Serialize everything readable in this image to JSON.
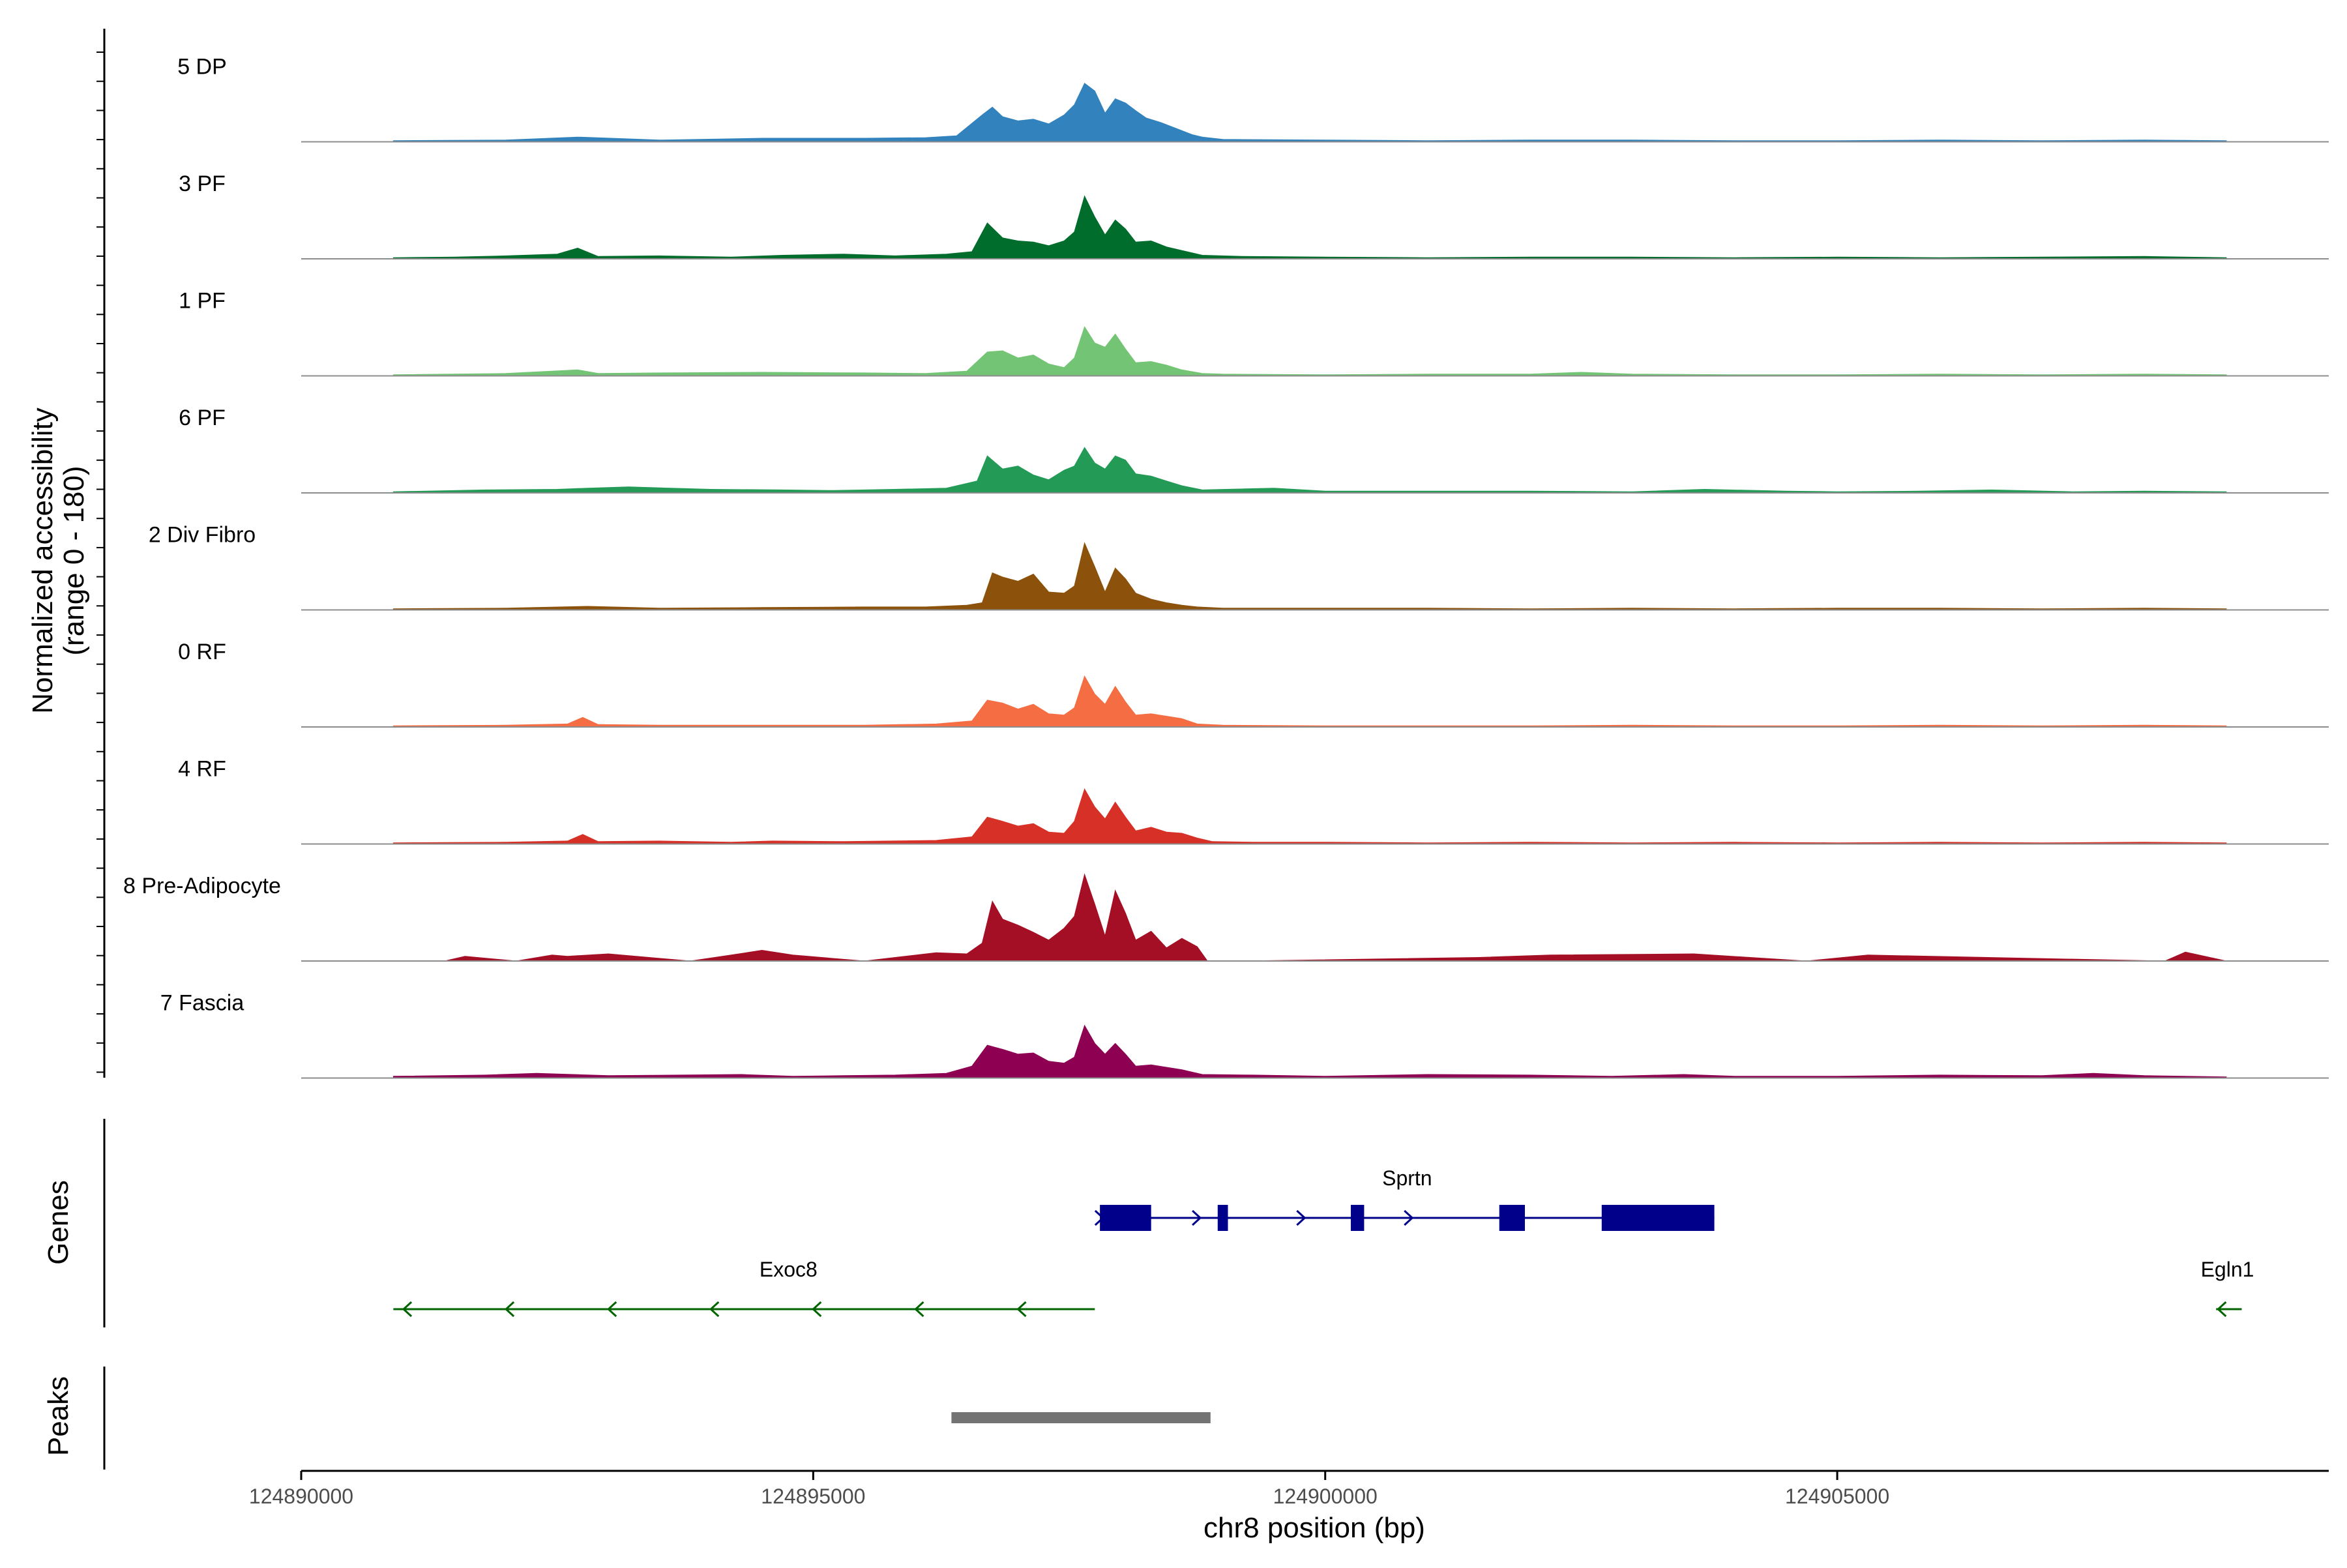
{
  "chart_data": {
    "type": "area",
    "title": "",
    "ylabel_line1": "Normalized accessibility",
    "ylabel_line2": "(range 0 - 180)",
    "y_range": [
      0,
      180
    ],
    "xlabel": "chr8 position (bp)",
    "xlim": [
      124890000,
      124909800
    ],
    "x_ticks": [
      124890000,
      124895000,
      124900000,
      124905000
    ],
    "x_tick_labels": [
      "124890000",
      "124895000",
      "124900000",
      "124905000"
    ],
    "tracks": [
      {
        "name": "5 DP",
        "color": "#3182bd",
        "x": [
          124890900,
          124892000,
          124892700,
          124893500,
          124894500,
          124895500,
          124896100,
          124896400,
          124896650,
          124896750,
          124896850,
          124897000,
          124897150,
          124897300,
          124897450,
          124897550,
          124897650,
          124897750,
          124897850,
          124897950,
          124898050,
          124898150,
          124898250,
          124898400,
          124898550,
          124898700,
          124898800,
          124899000,
          124900000,
          124901000,
          124902000,
          124903000,
          124904000,
          124905000,
          124906000,
          124907000,
          124908000,
          124908800
        ],
        "values": [
          2,
          3,
          8,
          3,
          6,
          6,
          7,
          10,
          45,
          58,
          42,
          35,
          38,
          30,
          45,
          62,
          98,
          85,
          48,
          72,
          65,
          52,
          40,
          32,
          22,
          12,
          8,
          4,
          3,
          2,
          3,
          3,
          2,
          2,
          3,
          2,
          3,
          2
        ]
      },
      {
        "name": "3 PF",
        "color": "#006d2c",
        "x": [
          124890900,
          124891500,
          124892000,
          124892500,
          124892700,
          124892900,
          124893500,
          124894200,
          124894700,
          124895300,
          124895800,
          124896300,
          124896550,
          124896700,
          124896850,
          124897000,
          124897150,
          124897300,
          124897450,
          124897550,
          124897650,
          124897750,
          124897850,
          124897950,
          124898050,
          124898150,
          124898300,
          124898450,
          124898600,
          124898800,
          124899200,
          124900000,
          124901000,
          124902000,
          124903000,
          124904000,
          124905000,
          124906000,
          124907000,
          124908000,
          124908800
        ],
        "values": [
          2,
          3,
          5,
          8,
          18,
          4,
          5,
          3,
          6,
          8,
          5,
          8,
          12,
          60,
          35,
          30,
          28,
          22,
          30,
          45,
          105,
          70,
          40,
          65,
          50,
          28,
          30,
          20,
          14,
          6,
          4,
          3,
          2,
          3,
          3,
          2,
          3,
          2,
          3,
          4,
          2
        ]
      },
      {
        "name": "1 PF",
        "color": "#74c476",
        "x": [
          124890900,
          124892000,
          124892700,
          124892900,
          124893500,
          124894500,
          124895500,
          124896100,
          124896500,
          124896700,
          124896850,
          124897000,
          124897150,
          124897300,
          124897450,
          124897550,
          124897650,
          124897750,
          124897850,
          124897950,
          124898050,
          124898150,
          124898300,
          124898450,
          124898600,
          124898800,
          124899000,
          124900000,
          124901000,
          124902000,
          124902500,
          124903000,
          124904000,
          124905000,
          124906000,
          124907000,
          124908000,
          124908800
        ],
        "values": [
          2,
          4,
          10,
          4,
          5,
          6,
          5,
          4,
          8,
          40,
          42,
          30,
          35,
          20,
          14,
          30,
          82,
          55,
          48,
          70,
          45,
          22,
          24,
          18,
          10,
          4,
          3,
          2,
          3,
          3,
          6,
          3,
          2,
          2,
          3,
          2,
          3,
          2
        ]
      },
      {
        "name": "6 PF",
        "color": "#239b56",
        "x": [
          124890900,
          124891800,
          124892500,
          124892800,
          124893200,
          124894000,
          124894700,
          124895200,
          124895800,
          124896300,
          124896600,
          124896700,
          124896850,
          124897000,
          124897150,
          124897300,
          124897450,
          124897550,
          124897650,
          124897750,
          124897850,
          124897950,
          124898050,
          124898150,
          124898300,
          124898450,
          124898600,
          124898800,
          124899500,
          124900000,
          124901000,
          124902000,
          124903000,
          124903700,
          124904500,
          124905000,
          124905800,
          124906500,
          124907300,
          124908000,
          124908800
        ],
        "values": [
          2,
          5,
          6,
          8,
          10,
          6,
          5,
          4,
          6,
          8,
          20,
          62,
          40,
          45,
          30,
          22,
          38,
          45,
          76,
          50,
          40,
          62,
          55,
          32,
          28,
          20,
          12,
          5,
          8,
          3,
          3,
          3,
          2,
          6,
          3,
          2,
          3,
          5,
          2,
          3,
          2
        ]
      },
      {
        "name": "2 Div Fibro",
        "color": "#8c510a",
        "x": [
          124890900,
          124892000,
          124892800,
          124893500,
          124894500,
          124895500,
          124896100,
          124896500,
          124896650,
          124896750,
          124896850,
          124897000,
          124897150,
          124897300,
          124897450,
          124897550,
          124897650,
          124897750,
          124897850,
          124897950,
          124898050,
          124898150,
          124898300,
          124898450,
          124898600,
          124898750,
          124899000,
          124900000,
          124901000,
          124902000,
          124903000,
          124904000,
          124905000,
          124906000,
          124907000,
          124908000,
          124908800
        ],
        "values": [
          2,
          3,
          6,
          3,
          4,
          5,
          5,
          8,
          12,
          62,
          55,
          48,
          60,
          30,
          28,
          40,
          112,
          72,
          30,
          70,
          52,
          28,
          18,
          12,
          8,
          5,
          3,
          3,
          3,
          2,
          3,
          2,
          3,
          3,
          2,
          3,
          2
        ]
      },
      {
        "name": "0 RF",
        "color": "#f46d43",
        "x": [
          124890900,
          124892000,
          124892600,
          124892750,
          124892900,
          124893500,
          124894500,
          124895500,
          124896200,
          124896550,
          124896700,
          124896850,
          124897000,
          124897150,
          124897300,
          124897450,
          124897550,
          124897650,
          124897750,
          124897850,
          124897950,
          124898050,
          124898150,
          124898300,
          124898450,
          124898600,
          124898750,
          124899000,
          124900000,
          124901000,
          124902000,
          124903000,
          124904000,
          124905000,
          124906000,
          124907000,
          124908000,
          124908800
        ],
        "values": [
          2,
          3,
          5,
          16,
          4,
          3,
          3,
          3,
          5,
          10,
          45,
          40,
          30,
          38,
          22,
          20,
          32,
          85,
          55,
          38,
          68,
          42,
          20,
          22,
          18,
          14,
          5,
          3,
          2,
          2,
          2,
          3,
          2,
          2,
          3,
          2,
          3,
          2
        ]
      },
      {
        "name": "4 RF",
        "color": "#d73027",
        "x": [
          124890900,
          124892000,
          124892600,
          124892750,
          124892900,
          124893500,
          124894200,
          124894600,
          124895300,
          124896200,
          124896550,
          124896700,
          124896850,
          124897000,
          124897150,
          124897300,
          124897450,
          124897550,
          124897650,
          124897750,
          124897850,
          124897950,
          124898050,
          124898150,
          124898300,
          124898450,
          124898600,
          124898750,
          124898900,
          124899300,
          124900000,
          124901000,
          124902000,
          124903000,
          124904000,
          124905000,
          124906000,
          124907000,
          124908000,
          124908800
        ],
        "values": [
          2,
          3,
          5,
          16,
          4,
          5,
          3,
          5,
          4,
          6,
          12,
          45,
          38,
          30,
          34,
          20,
          18,
          38,
          92,
          62,
          42,
          70,
          45,
          22,
          28,
          20,
          18,
          10,
          4,
          3,
          3,
          2,
          3,
          2,
          3,
          2,
          3,
          2,
          3,
          2
        ]
      },
      {
        "name": "8 Pre-Adipocyte",
        "color": "#a50f25",
        "x": [
          124890900,
          124891400,
          124891600,
          124892100,
          124892450,
          124892600,
          124893000,
          124893800,
          124894200,
          124894500,
          124894800,
          124895500,
          124896200,
          124896500,
          124896650,
          124896750,
          124896850,
          124897000,
          124897150,
          124897300,
          124897450,
          124897550,
          124897650,
          124897750,
          124897850,
          124897950,
          124898050,
          124898150,
          124898300,
          124898450,
          124898600,
          124898750,
          124898850,
          124899200,
          124901500,
          124902200,
          124903600,
          124904700,
          124905300,
          124908200,
          124908400,
          124908800
        ],
        "values": [
          0,
          0,
          8,
          0,
          10,
          8,
          12,
          0,
          10,
          18,
          10,
          0,
          14,
          12,
          30,
          100,
          70,
          60,
          48,
          35,
          55,
          75,
          145,
          95,
          42,
          118,
          80,
          35,
          50,
          22,
          38,
          24,
          0,
          0,
          6,
          10,
          12,
          0,
          10,
          0,
          15,
          0
        ]
      },
      {
        "name": "7 Fascia",
        "color": "#8e0152",
        "x": [
          124890900,
          124891800,
          124892300,
          124893000,
          124893700,
          124894300,
          124894800,
          124895300,
          124895800,
          124896300,
          124896550,
          124896700,
          124896850,
          124897000,
          124897150,
          124897300,
          124897450,
          124897550,
          124897650,
          124897750,
          124897850,
          124897950,
          124898050,
          124898150,
          124898300,
          124898450,
          124898600,
          124898800,
          124899300,
          124900000,
          124901000,
          124902000,
          124902800,
          124903500,
          124904000,
          124905000,
          124906000,
          124907000,
          124907500,
          124908000,
          124908800
        ],
        "values": [
          3,
          5,
          8,
          4,
          5,
          6,
          3,
          4,
          5,
          8,
          20,
          55,
          48,
          40,
          42,
          28,
          25,
          35,
          88,
          58,
          40,
          58,
          40,
          20,
          22,
          18,
          14,
          6,
          5,
          3,
          6,
          5,
          3,
          6,
          3,
          3,
          5,
          4,
          8,
          4,
          2
        ]
      }
    ],
    "genes_label": "Genes",
    "genes": [
      {
        "name": "Sprtn",
        "strand": "+",
        "color": "#00008b",
        "start": 124897800,
        "end": 124903800,
        "exons": [
          [
            124897800,
            124898300
          ],
          [
            124898950,
            124899050
          ],
          [
            124900250,
            124900380
          ],
          [
            124901700,
            124901950
          ],
          [
            124902700,
            124903800
          ]
        ],
        "intron_arrows": [
          124897830,
          124898780,
          124899800,
          124900850
        ]
      },
      {
        "name": "Exoc8",
        "strand": "-",
        "color": "#006400",
        "start": 124890900,
        "end": 124897750,
        "exons": [],
        "intron_arrows": [
          124891000,
          124892000,
          124893000,
          124894000,
          124895000,
          124896000,
          124897000
        ]
      },
      {
        "name": "Egln1",
        "strand": "-",
        "color": "#006400",
        "start": 124908700,
        "end": 124908950,
        "exons": [],
        "intron_arrows": [
          124908720
        ]
      }
    ],
    "peaks_label": "Peaks",
    "peaks": [
      {
        "start": 124896350,
        "end": 124898880,
        "color": "#737373"
      }
    ]
  }
}
